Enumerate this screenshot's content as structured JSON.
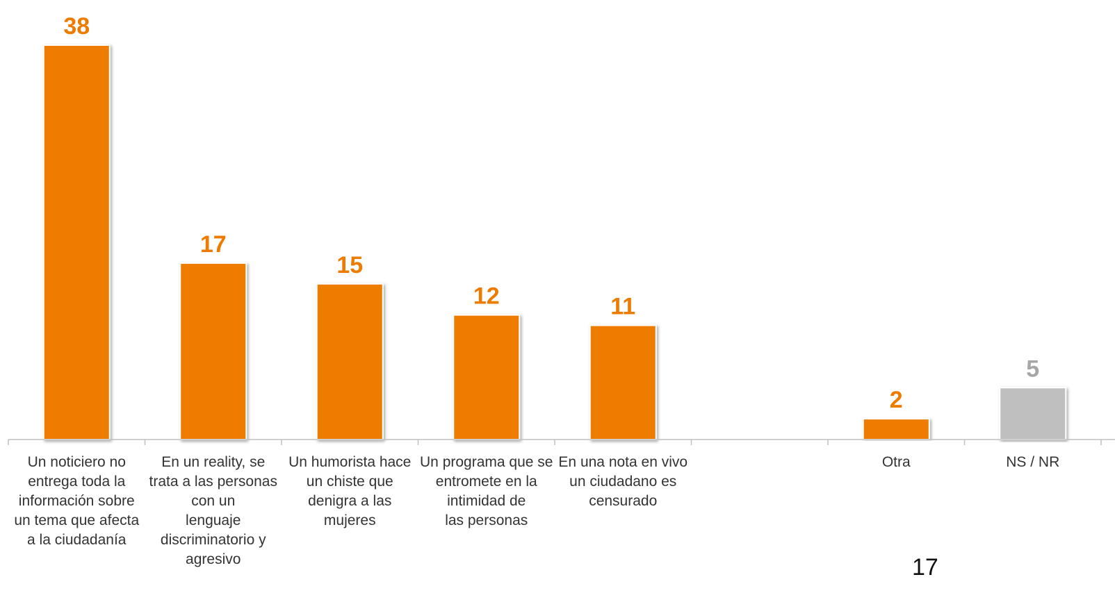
{
  "chart_data": {
    "type": "bar",
    "categories": [
      "Un noticiero no\nentrega toda la\ninformación sobre\nun tema que afecta\na la ciudadanía",
      "En un reality, se\ntrata a las personas\ncon un\nlenguaje\ndiscriminatorio y\nagresivo",
      "Un humorista hace\nun chiste que\ndenigra a las\nmujeres",
      "Un programa que se\nentromete en la\nintimidad de\nlas personas",
      "En una nota en vivo\nun ciudadano es\ncensurado",
      "",
      "Otra",
      "NS / NR"
    ],
    "values": [
      38,
      17,
      15,
      12,
      11,
      null,
      2,
      5
    ],
    "value_labels": [
      "38",
      "17",
      "15",
      "12",
      "11",
      "",
      "2",
      "5"
    ],
    "bar_colors": [
      "#ED7B00",
      "#ED7B00",
      "#ED7B00",
      "#ED7B00",
      "#ED7B00",
      "",
      "#ED7B00",
      "#BFBFBF"
    ],
    "label_colors": [
      "#ED7B00",
      "#ED7B00",
      "#ED7B00",
      "#ED7B00",
      "#ED7B00",
      "",
      "#ED7B00",
      "#A6A6A6"
    ],
    "ylim": [
      0,
      38
    ],
    "grid": false,
    "title": "",
    "xlabel": "",
    "ylabel": ""
  },
  "page_number": "17"
}
